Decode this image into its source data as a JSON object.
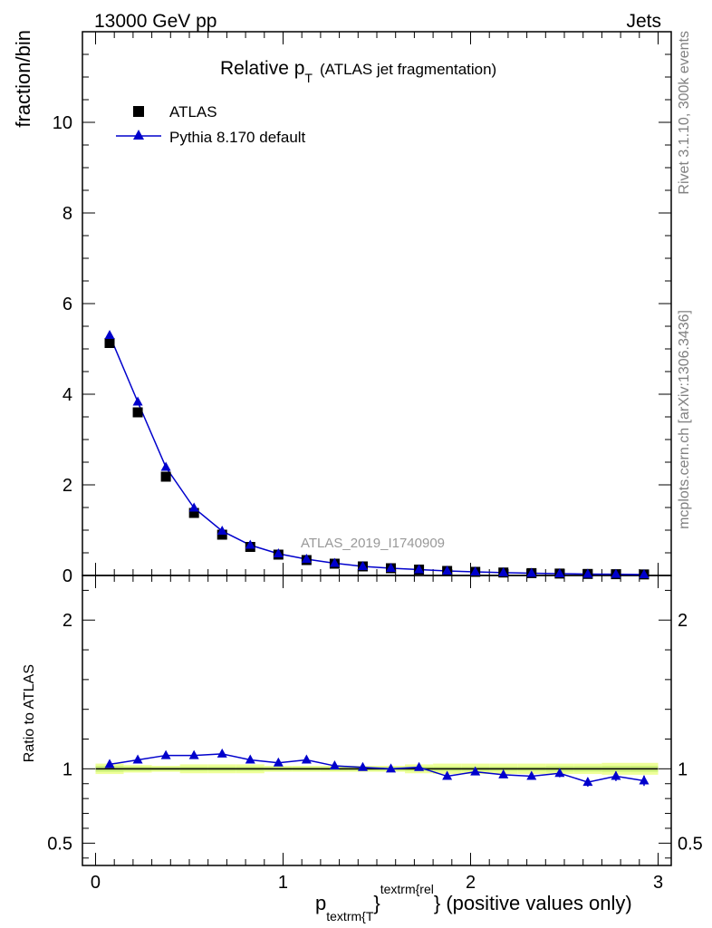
{
  "header": {
    "left": "13000 GeV pp",
    "right": "Jets"
  },
  "side_labels": {
    "rivet": "Rivet 3.1.10,  300k events",
    "mcplots": "mcplots.cern.ch [arXiv:1306.3436]"
  },
  "chart_data": {
    "type": "scatter",
    "title": "Relative p",
    "title_sub": "T",
    "title_suffix": "(ATLAS jet fragmentation)",
    "watermark": "ATLAS_2019_I1740909",
    "ylabel": "fraction/bin",
    "ratio_ylabel": "Ratio to ATLAS",
    "xlabel": {
      "p": "p",
      "sub": "textrm{T",
      "brace": "}",
      "sup": "textrm{rel",
      "end": "} (positive values only)"
    },
    "xlim": [
      -0.07,
      3.07
    ],
    "ylim": [
      0,
      12
    ],
    "ratio_ylim": [
      0.35,
      2.3
    ],
    "x_ticks": [
      "0",
      "1",
      "2",
      "3"
    ],
    "y_ticks": [
      "0",
      "2",
      "4",
      "6",
      "8",
      "10"
    ],
    "ratio_ticks": [
      "0.5",
      "1",
      "2"
    ],
    "legend": [
      {
        "name": "ATLAS",
        "marker": "square",
        "color": "#000000"
      },
      {
        "name": "Pythia 8.170 default",
        "marker": "triangle",
        "color": "#0000cc"
      }
    ],
    "x": [
      0.075,
      0.225,
      0.375,
      0.525,
      0.675,
      0.825,
      0.975,
      1.125,
      1.275,
      1.425,
      1.575,
      1.725,
      1.875,
      2.025,
      2.175,
      2.325,
      2.475,
      2.625,
      2.775,
      2.925
    ],
    "series": [
      {
        "name": "ATLAS",
        "values": [
          5.13,
          3.6,
          2.18,
          1.38,
          0.9,
          0.63,
          0.46,
          0.34,
          0.26,
          0.2,
          0.16,
          0.13,
          0.1,
          0.08,
          0.065,
          0.052,
          0.042,
          0.034,
          0.028,
          0.023
        ]
      },
      {
        "name": "Pythia 8.170 default",
        "values": [
          5.3,
          3.83,
          2.39,
          1.49,
          0.98,
          0.67,
          0.48,
          0.36,
          0.27,
          0.2,
          0.16,
          0.13,
          0.1,
          0.08,
          0.063,
          0.05,
          0.041,
          0.031,
          0.027,
          0.021
        ]
      }
    ],
    "ratio": {
      "values": [
        1.03,
        1.06,
        1.09,
        1.09,
        1.1,
        1.06,
        1.04,
        1.06,
        1.02,
        1.01,
        1.0,
        1.01,
        0.95,
        0.98,
        0.96,
        0.95,
        0.97,
        0.91,
        0.95,
        0.92
      ],
      "errors": [
        0.005,
        0.005,
        0.005,
        0.005,
        0.006,
        0.006,
        0.007,
        0.008,
        0.009,
        0.01,
        0.012,
        0.015,
        0.017,
        0.02,
        0.022,
        0.024,
        0.027,
        0.03,
        0.032,
        0.035
      ],
      "band_inner": [
        0.02,
        0.015,
        0.012,
        0.015,
        0.015,
        0.015,
        0.012,
        0.012,
        0.012,
        0.012,
        0.012,
        0.015,
        0.015,
        0.015,
        0.015,
        0.015,
        0.018,
        0.018,
        0.02,
        0.02
      ],
      "band_outer": [
        0.035,
        0.025,
        0.02,
        0.03,
        0.03,
        0.03,
        0.02,
        0.02,
        0.02,
        0.02,
        0.02,
        0.03,
        0.035,
        0.035,
        0.035,
        0.035,
        0.035,
        0.035,
        0.04,
        0.04
      ]
    },
    "colors": {
      "band_outer": "#eeff99",
      "band_inner": "#ccf07a",
      "data": "#000000",
      "mc": "#0000cc",
      "watermark": "#999999",
      "side_text": "#808080"
    }
  }
}
